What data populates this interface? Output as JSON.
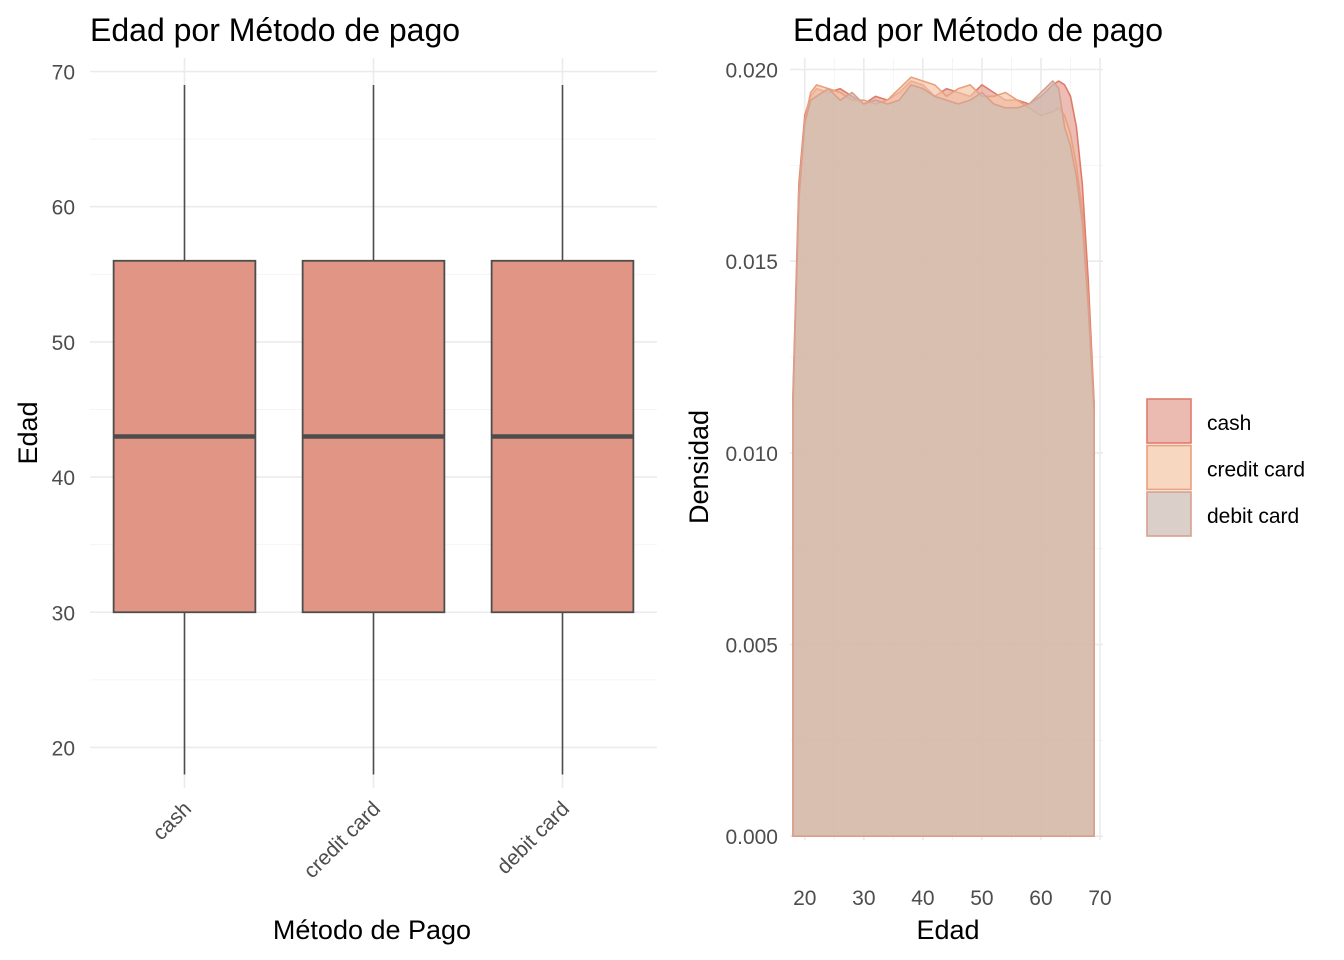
{
  "chart_data": [
    {
      "type": "box",
      "title": "Edad por Método de pago",
      "xlabel": "Método de Pago",
      "ylabel": "Edad",
      "ylim": [
        17,
        71
      ],
      "yticks": [
        20,
        30,
        40,
        50,
        60,
        70
      ],
      "grid": true,
      "box_color": "#e19585",
      "categories": [
        "cash",
        "credit card",
        "debit card"
      ],
      "boxes": [
        {
          "category": "cash",
          "min": 18,
          "q1": 30,
          "median": 43,
          "q3": 56,
          "max": 69
        },
        {
          "category": "credit card",
          "min": 18,
          "q1": 30,
          "median": 43,
          "q3": 56,
          "max": 69
        },
        {
          "category": "debit card",
          "min": 18,
          "q1": 30,
          "median": 43,
          "q3": 56,
          "max": 69
        }
      ]
    },
    {
      "type": "area",
      "title": "Edad por Método de pago",
      "xlabel": "Edad",
      "ylabel": "Densidad",
      "xlim": [
        17.5,
        70.5
      ],
      "ylim": [
        -0.0001,
        0.0203
      ],
      "xticks": [
        20,
        30,
        40,
        50,
        60,
        70
      ],
      "yticks": [
        0.0,
        0.005,
        0.01,
        0.015,
        0.02
      ],
      "ytick_labels": [
        "0.000",
        "0.005",
        "0.010",
        "0.015",
        "0.020"
      ],
      "grid": true,
      "legend": "right",
      "x": [
        18,
        19,
        20,
        21,
        22,
        24,
        26,
        28,
        30,
        32,
        34,
        36,
        38,
        40,
        42,
        44,
        46,
        48,
        50,
        52,
        54,
        56,
        58,
        60,
        62,
        63,
        64,
        65,
        66,
        67,
        68,
        69
      ],
      "series": [
        {
          "name": "cash",
          "color": "#e39e91",
          "stroke": "#e07b6a",
          "values": [
            0.0115,
            0.017,
            0.0188,
            0.0193,
            0.0195,
            0.0194,
            0.0195,
            0.0193,
            0.0191,
            0.0193,
            0.0192,
            0.0194,
            0.0197,
            0.0196,
            0.0193,
            0.0195,
            0.0194,
            0.0193,
            0.0196,
            0.0194,
            0.0192,
            0.0192,
            0.0191,
            0.0193,
            0.0196,
            0.0197,
            0.0196,
            0.0193,
            0.0185,
            0.017,
            0.0145,
            0.0113
          ]
        },
        {
          "name": "credit card",
          "color": "#f3c6a5",
          "stroke": "#e9a07b",
          "values": [
            0.0112,
            0.0168,
            0.0187,
            0.0194,
            0.0196,
            0.0195,
            0.0194,
            0.0192,
            0.0192,
            0.0191,
            0.0192,
            0.0195,
            0.0198,
            0.0197,
            0.0196,
            0.0193,
            0.0195,
            0.0196,
            0.0193,
            0.0193,
            0.0194,
            0.0192,
            0.019,
            0.0188,
            0.0189,
            0.019,
            0.0188,
            0.0183,
            0.0175,
            0.0163,
            0.014,
            0.0112
          ]
        },
        {
          "name": "debit card",
          "color": "#cbbcb2",
          "stroke": "#d9a08f",
          "values": [
            0.0113,
            0.0166,
            0.0186,
            0.0192,
            0.0193,
            0.0195,
            0.0192,
            0.0194,
            0.0191,
            0.0192,
            0.0191,
            0.0192,
            0.0196,
            0.0195,
            0.0193,
            0.0192,
            0.0191,
            0.0192,
            0.0194,
            0.0191,
            0.019,
            0.019,
            0.0191,
            0.0194,
            0.0197,
            0.0195,
            0.0185,
            0.018,
            0.0172,
            0.016,
            0.0138,
            0.0111
          ]
        }
      ]
    }
  ]
}
